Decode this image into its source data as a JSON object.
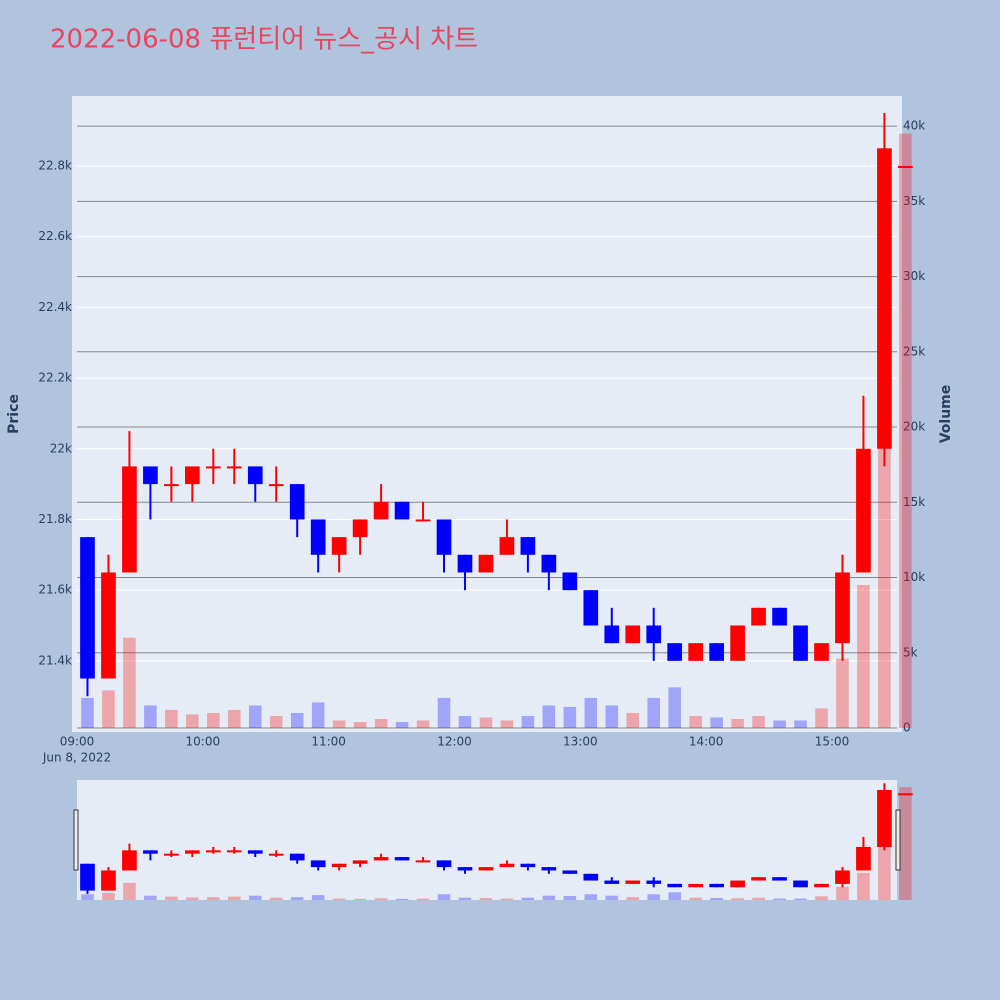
{
  "chart_data": {
    "type": "candlestick",
    "title": "2022-06-08 퓨런티어 뉴스_공시 차트",
    "title_color": "#e8455e",
    "y_title": "Price",
    "y2_title": "Volume",
    "x_date_label": "Jun 8, 2022",
    "increasing_color": "#ff0000",
    "decreasing_color": "#0000ff",
    "x": [
      "09:00",
      "09:10",
      "09:20",
      "09:30",
      "09:40",
      "09:50",
      "10:00",
      "10:10",
      "10:20",
      "10:30",
      "10:40",
      "10:50",
      "11:00",
      "11:10",
      "11:20",
      "11:30",
      "11:40",
      "11:50",
      "12:00",
      "12:10",
      "12:20",
      "12:30",
      "12:40",
      "12:50",
      "13:00",
      "13:10",
      "13:20",
      "13:30",
      "13:40",
      "13:50",
      "14:00",
      "14:10",
      "14:20",
      "14:30",
      "14:40",
      "14:50",
      "15:00",
      "15:10",
      "15:20",
      "15:30"
    ],
    "open": [
      21750,
      21350,
      21650,
      21950,
      21900,
      21900,
      21950,
      21950,
      21950,
      21900,
      21900,
      21800,
      21700,
      21750,
      21800,
      21850,
      21800,
      21800,
      21700,
      21650,
      21700,
      21750,
      21700,
      21650,
      21600,
      21500,
      21450,
      21500,
      21450,
      21400,
      21450,
      21400,
      21500,
      21550,
      21500,
      21400,
      21450,
      21650,
      22000,
      22800
    ],
    "high": [
      21750,
      21700,
      22050,
      21950,
      21950,
      21950,
      22000,
      22000,
      21950,
      21950,
      21900,
      21800,
      21750,
      21800,
      21900,
      21850,
      21850,
      21800,
      21700,
      21700,
      21800,
      21750,
      21700,
      21650,
      21600,
      21550,
      21500,
      21550,
      21450,
      21450,
      21450,
      21500,
      21550,
      21550,
      21500,
      21450,
      21700,
      22150,
      22950,
      22800
    ],
    "low": [
      21300,
      21350,
      21650,
      21800,
      21850,
      21850,
      21900,
      21900,
      21850,
      21850,
      21750,
      21650,
      21650,
      21700,
      21800,
      21800,
      21800,
      21650,
      21600,
      21650,
      21700,
      21650,
      21600,
      21600,
      21500,
      21450,
      21450,
      21400,
      21400,
      21400,
      21400,
      21400,
      21500,
      21500,
      21400,
      21400,
      21400,
      21650,
      21950,
      22800
    ],
    "close": [
      21350,
      21650,
      21950,
      21900,
      21900,
      21950,
      21950,
      21950,
      21900,
      21900,
      21800,
      21700,
      21750,
      21800,
      21850,
      21800,
      21800,
      21700,
      21650,
      21700,
      21750,
      21700,
      21650,
      21600,
      21500,
      21450,
      21500,
      21450,
      21400,
      21450,
      21400,
      21500,
      21550,
      21500,
      21400,
      21450,
      21650,
      22000,
      22850,
      22800
    ],
    "volume": [
      2000,
      2500,
      6000,
      1500,
      1200,
      900,
      1000,
      1200,
      1500,
      800,
      1000,
      1700,
      500,
      400,
      600,
      400,
      500,
      2000,
      800,
      700,
      500,
      800,
      1500,
      1400,
      2000,
      1500,
      1000,
      2000,
      2700,
      800,
      700,
      600,
      800,
      500,
      500,
      1300,
      4600,
      9500,
      26000,
      39500
    ],
    "xlim": [
      "09:00",
      "15:31"
    ],
    "xticks": [
      "09:00",
      "10:00",
      "11:00",
      "12:00",
      "13:00",
      "14:00",
      "15:00"
    ],
    "ylim": [
      21210,
      22998
    ],
    "yticks": [
      {
        "value": 21400,
        "label": "21.4k"
      },
      {
        "value": 21600,
        "label": "21.6k"
      },
      {
        "value": 21800,
        "label": "21.8k"
      },
      {
        "value": 22000,
        "label": "22k"
      },
      {
        "value": 22200,
        "label": "22.2k"
      },
      {
        "value": 22400,
        "label": "22.4k"
      },
      {
        "value": 22600,
        "label": "22.6k"
      },
      {
        "value": 22800,
        "label": "22.8k"
      }
    ],
    "y2lim": [
      0,
      42000
    ],
    "y2ticks": [
      0,
      {
        "value": 5000,
        "label": "5k"
      },
      {
        "value": 10000,
        "label": "10k"
      },
      {
        "value": 15000,
        "label": "15k"
      },
      {
        "value": 20000,
        "label": "20k"
      },
      {
        "value": 25000,
        "label": "25k"
      },
      {
        "value": 30000,
        "label": "30k"
      },
      {
        "value": 35000,
        "label": "35k"
      },
      {
        "value": 40000,
        "label": "40k"
      }
    ],
    "grid": true,
    "rangeslider": true
  }
}
